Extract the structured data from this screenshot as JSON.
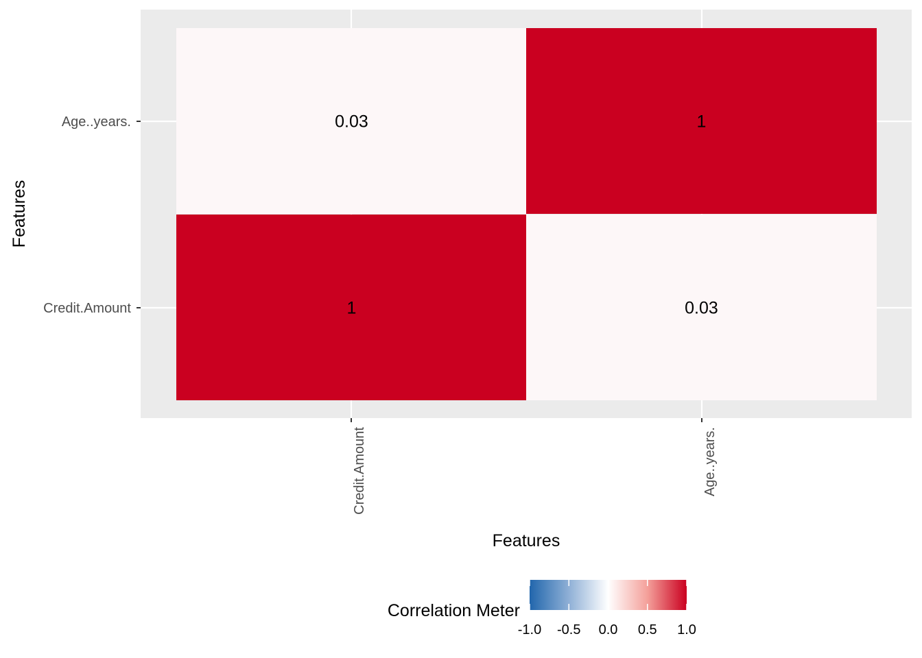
{
  "chart_data": {
    "type": "heatmap",
    "x_categories": [
      "Credit.Amount",
      "Age..years."
    ],
    "y_categories": [
      "Credit.Amount",
      "Age..years."
    ],
    "cells": [
      {
        "x": "Credit.Amount",
        "y": "Age..years.",
        "value": 0.03,
        "label": "0.03"
      },
      {
        "x": "Age..years.",
        "y": "Age..years.",
        "value": 1,
        "label": "1"
      },
      {
        "x": "Credit.Amount",
        "y": "Credit.Amount",
        "value": 1,
        "label": "1"
      },
      {
        "x": "Age..years.",
        "y": "Credit.Amount",
        "value": 0.03,
        "label": "0.03"
      }
    ],
    "xlabel": "Features",
    "ylabel": "Features",
    "grid": true,
    "legend": {
      "title": "Correlation Meter",
      "position": "bottom",
      "limits": [
        -1.0,
        1.0
      ],
      "ticks": [
        -1.0,
        -0.5,
        0.0,
        0.5,
        1.0
      ],
      "tick_labels": [
        "-1.0",
        "-0.5",
        "0.0",
        "0.5",
        "1.0"
      ],
      "colors": {
        "low": "#2166ac",
        "mid": "#ffffff",
        "high": "#ca0020"
      }
    }
  }
}
